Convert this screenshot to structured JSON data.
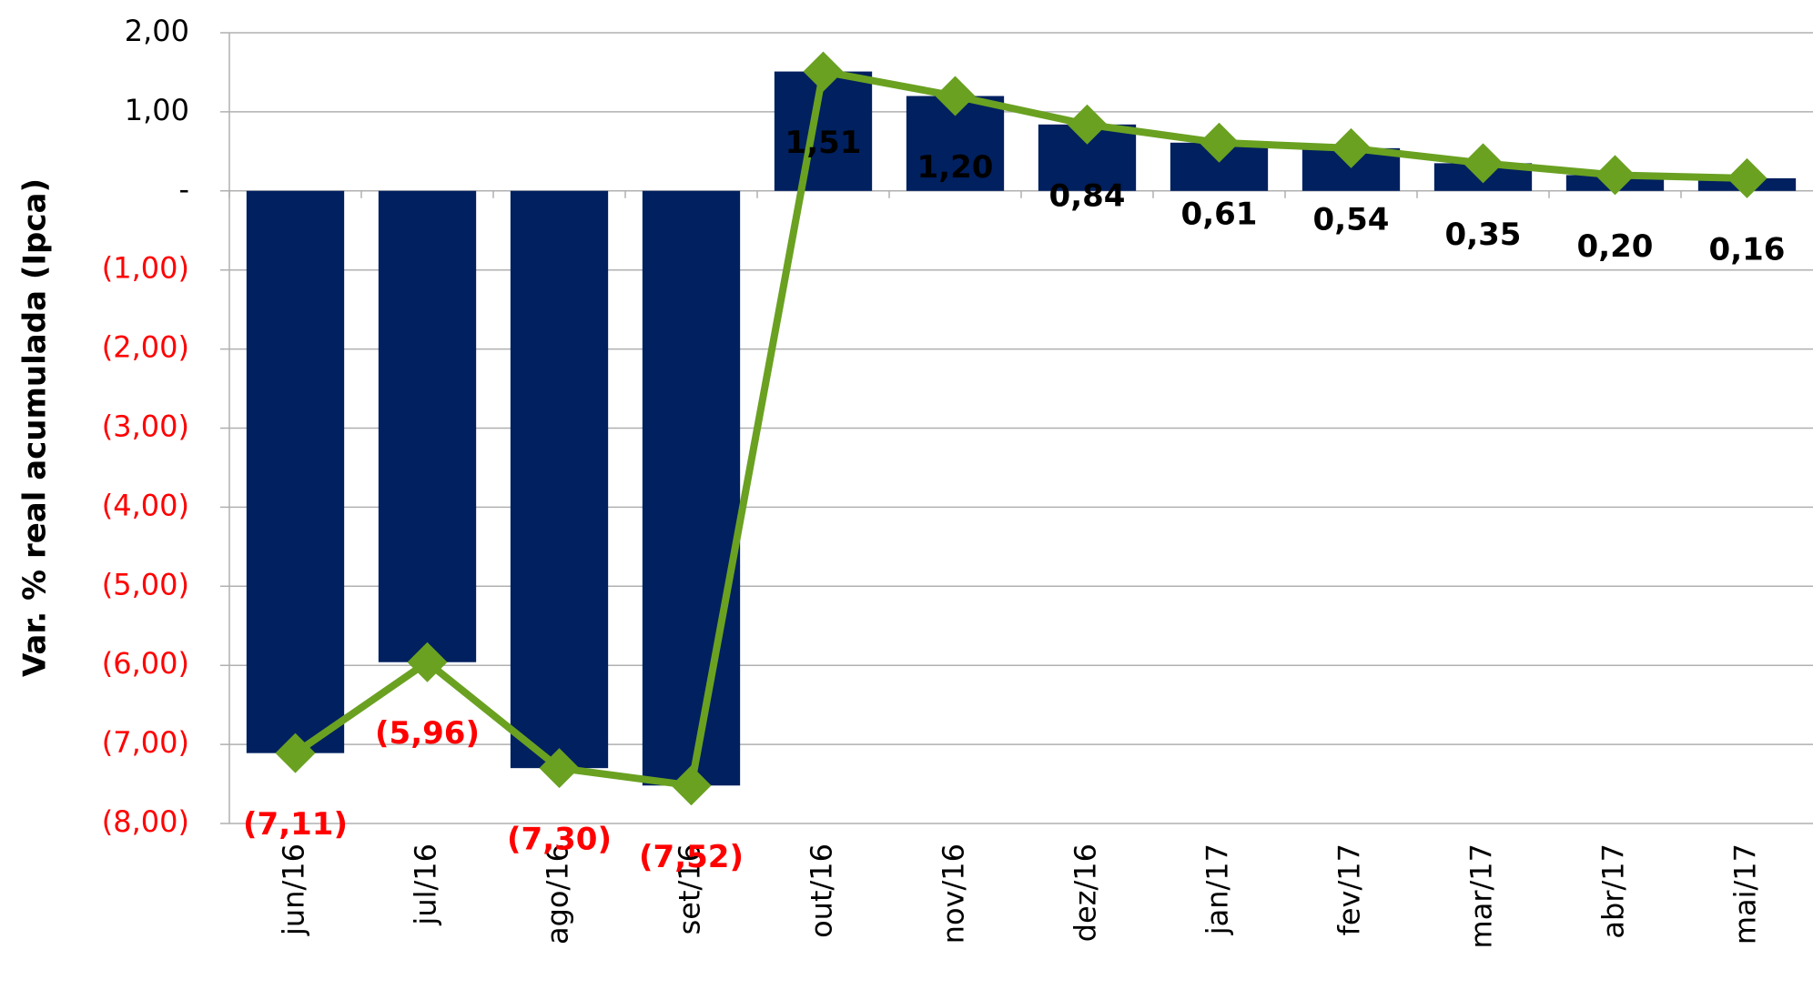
{
  "chart_data": {
    "type": "combo",
    "y_axis_label": "Var. % real acumulada (Ipca)",
    "categories": [
      "jun/16",
      "jul/16",
      "ago/16",
      "set/16",
      "out/16",
      "nov/16",
      "dez/16",
      "jan/17",
      "fev/17",
      "mar/17",
      "abr/17",
      "mai/17"
    ],
    "values": [
      -7.11,
      -5.96,
      -7.3,
      -7.52,
      1.51,
      1.2,
      0.84,
      0.61,
      0.54,
      0.35,
      0.2,
      0.16
    ],
    "value_labels": [
      "(7,11)",
      "(5,96)",
      "(7,30)",
      "(7,52)",
      "1,51",
      "1,20",
      "0,84",
      "0,61",
      "0,54",
      "0,35",
      "0,20",
      "0,16"
    ],
    "bar_color": "#002060",
    "line_color": "#6aa121",
    "negative_color": "#ff0000",
    "ylim": [
      -8,
      2
    ],
    "yticks": [
      {
        "value": 2,
        "label": "2,00"
      },
      {
        "value": 1,
        "label": "1,00"
      },
      {
        "value": 0,
        "label": "-"
      },
      {
        "value": -1,
        "label": "(1,00)"
      },
      {
        "value": -2,
        "label": "(2,00)"
      },
      {
        "value": -3,
        "label": "(3,00)"
      },
      {
        "value": -4,
        "label": "(4,00)"
      },
      {
        "value": -5,
        "label": "(5,00)"
      },
      {
        "value": -6,
        "label": "(6,00)"
      },
      {
        "value": -7,
        "label": "(7,00)"
      },
      {
        "value": -8,
        "label": "(8,00)"
      }
    ],
    "grid": true
  }
}
